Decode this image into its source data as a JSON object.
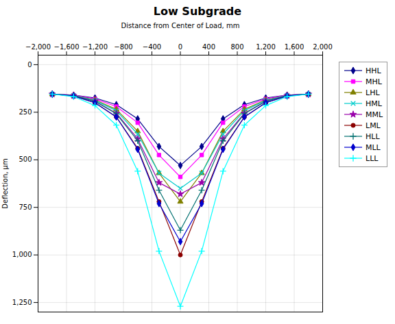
{
  "chart_data": {
    "type": "line",
    "title": "Low Subgrade",
    "xlabel": "Distance from Center of Load, mm",
    "ylabel": "Deflection, μm",
    "x": [
      -1800,
      -1500,
      -1200,
      -900,
      -600,
      -300,
      0,
      300,
      600,
      900,
      1200,
      1500,
      1800
    ],
    "xlim": [
      -2000,
      2000
    ],
    "ylim": [
      1300,
      -50
    ],
    "xticks": [
      -2000,
      -1600,
      -1200,
      -800,
      -400,
      0,
      400,
      800,
      1200,
      1600,
      2000
    ],
    "yticks": [
      0,
      250,
      500,
      750,
      1000,
      1250
    ],
    "grid": true,
    "legend": "right",
    "series": [
      {
        "name": "HHL",
        "color": "#00008B",
        "marker": "diamond",
        "values": [
          155,
          160,
          175,
          210,
          285,
          430,
          530,
          430,
          285,
          210,
          175,
          160,
          155
        ]
      },
      {
        "name": "MHL",
        "color": "#FF00FF",
        "marker": "square",
        "values": [
          155,
          160,
          180,
          220,
          305,
          475,
          590,
          475,
          305,
          220,
          180,
          160,
          155
        ]
      },
      {
        "name": "LHL",
        "color": "#808000",
        "marker": "triangle",
        "values": [
          155,
          162,
          185,
          235,
          350,
          570,
          720,
          570,
          350,
          235,
          185,
          162,
          155
        ]
      },
      {
        "name": "HML",
        "color": "#00CCCC",
        "marker": "x",
        "values": [
          155,
          162,
          188,
          242,
          365,
          570,
          650,
          570,
          365,
          242,
          188,
          162,
          155
        ]
      },
      {
        "name": "MML",
        "color": "#9900AA",
        "marker": "star",
        "values": [
          155,
          163,
          192,
          255,
          390,
          620,
          680,
          620,
          390,
          255,
          192,
          163,
          155
        ]
      },
      {
        "name": "LML",
        "color": "#8B0000",
        "marker": "circle",
        "values": [
          155,
          165,
          200,
          275,
          440,
          720,
          1000,
          720,
          440,
          275,
          200,
          165,
          155
        ]
      },
      {
        "name": "HLL",
        "color": "#007070",
        "marker": "plus",
        "values": [
          155,
          163,
          193,
          258,
          400,
          660,
          870,
          660,
          400,
          258,
          193,
          163,
          155
        ]
      },
      {
        "name": "MLL",
        "color": "#0000CD",
        "marker": "diamond",
        "values": [
          155,
          165,
          200,
          275,
          445,
          730,
          930,
          730,
          445,
          275,
          200,
          165,
          155
        ]
      },
      {
        "name": "LLL",
        "color": "#00FFFF",
        "marker": "plus",
        "values": [
          155,
          168,
          215,
          318,
          560,
          980,
          1270,
          980,
          560,
          318,
          215,
          168,
          155
        ]
      }
    ]
  }
}
